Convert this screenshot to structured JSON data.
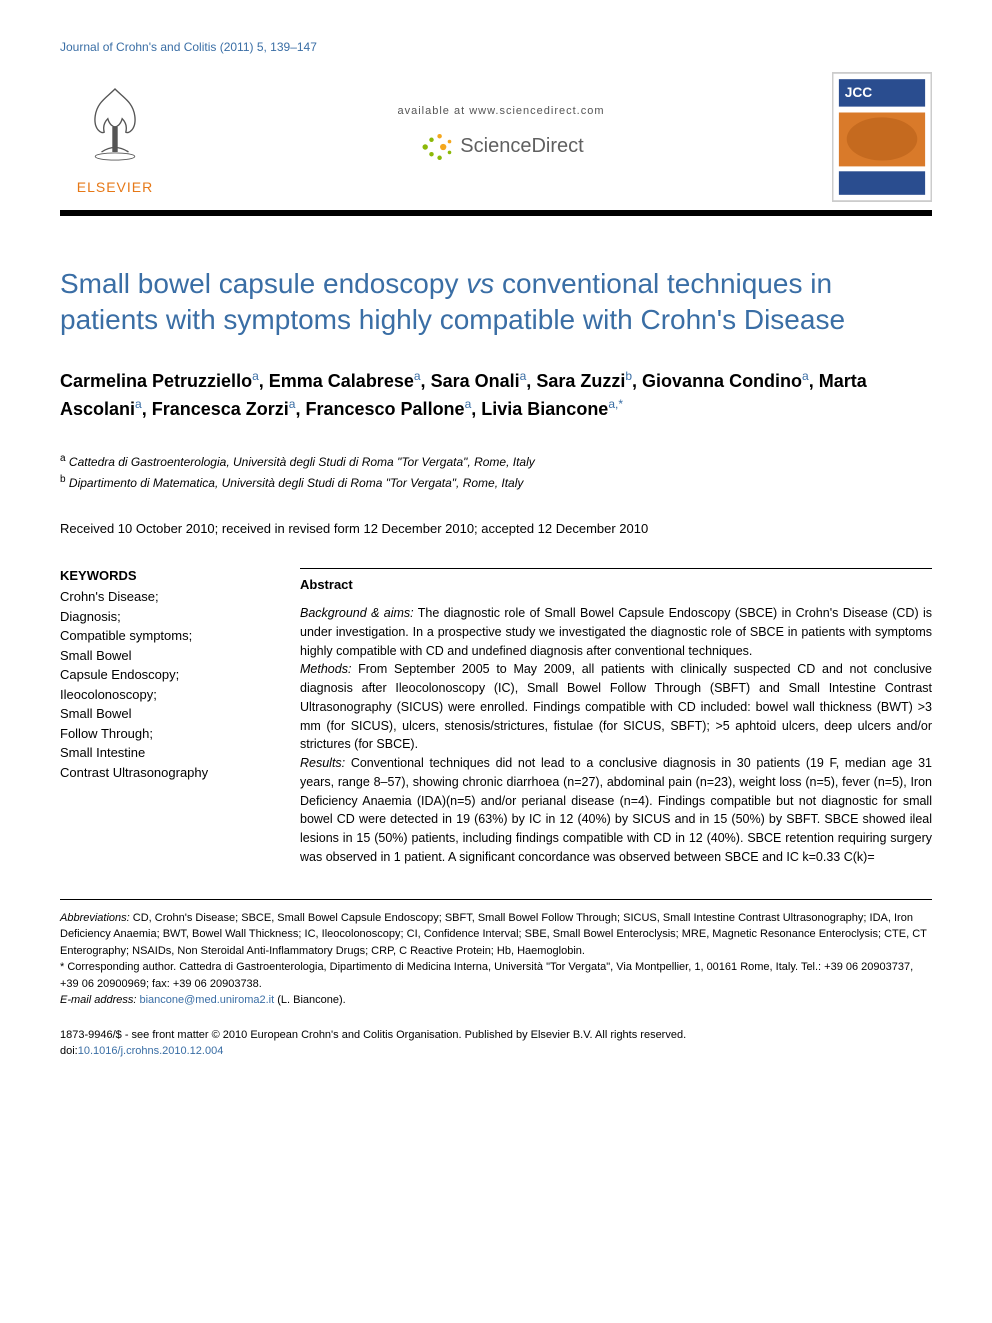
{
  "journal_ref": "Journal of Crohn's and Colitis (2011) 5, 139–147",
  "header": {
    "elsevier_label": "ELSEVIER",
    "available_text": "available at www.sciencedirect.com",
    "sciencedirect_label": "ScienceDirect",
    "cover_label_top": "JCC"
  },
  "title_parts": {
    "pre": "Small bowel capsule endoscopy ",
    "vs": "vs",
    "post": " conventional techniques in patients with symptoms highly compatible with Crohn's Disease"
  },
  "authors": [
    {
      "name": "Carmelina Petruzziello",
      "aff": "a"
    },
    {
      "name": "Emma Calabrese",
      "aff": "a"
    },
    {
      "name": "Sara Onali",
      "aff": "a"
    },
    {
      "name": "Sara Zuzzi",
      "aff": "b"
    },
    {
      "name": "Giovanna Condino",
      "aff": "a"
    },
    {
      "name": "Marta Ascolani",
      "aff": "a"
    },
    {
      "name": "Francesca Zorzi",
      "aff": "a"
    },
    {
      "name": "Francesco Pallone",
      "aff": "a"
    },
    {
      "name": "Livia Biancone",
      "aff": "a,*"
    }
  ],
  "affiliations": [
    {
      "sup": "a",
      "text": " Cattedra di Gastroenterologia, Università degli Studi di Roma \"Tor Vergata\", Rome, Italy"
    },
    {
      "sup": "b",
      "text": " Dipartimento di Matematica, Università degli Studi di Roma \"Tor Vergata\", Rome, Italy"
    }
  ],
  "dates": "Received 10 October 2010; received in revised form 12 December 2010; accepted 12 December 2010",
  "keywords": {
    "heading": "KEYWORDS",
    "items": "Crohn's Disease;\nDiagnosis;\nCompatible symptoms;\nSmall Bowel\nCapsule Endoscopy;\nIleocolonoscopy;\nSmall Bowel\nFollow Through;\nSmall Intestine\nContrast Ultrasonography"
  },
  "abstract": {
    "heading": "Abstract",
    "bg_label": "Background & aims:",
    "bg_text": " The diagnostic role of Small Bowel Capsule Endoscopy (SBCE) in Crohn's Disease (CD) is under investigation. In a prospective study we investigated the diagnostic role of SBCE in patients with symptoms highly compatible with CD and undefined diagnosis after conventional techniques.",
    "methods_label": "Methods:",
    "methods_text": " From September 2005 to May 2009, all patients with clinically suspected CD and not conclusive diagnosis after Ileocolonoscopy (IC), Small Bowel Follow Through (SBFT) and Small Intestine Contrast Ultrasonography (SICUS) were enrolled. Findings compatible with CD included: bowel wall thickness (BWT) >3 mm (for SICUS), ulcers, stenosis/strictures, fistulae (for SICUS, SBFT); >5 aphtoid ulcers, deep ulcers and/or strictures (for SBCE).",
    "results_label": "Results:",
    "results_text": " Conventional techniques did not lead to a conclusive diagnosis in 30 patients (19 F, median age 31 years, range 8–57), showing chronic diarrhoea (n=27), abdominal pain (n=23), weight loss (n=5), fever (n=5), Iron Deficiency Anaemia (IDA)(n=5) and/or perianal disease (n=4). Findings compatible but not diagnostic for small bowel CD were detected in 19 (63%) by IC in 12 (40%) by SICUS and in 15 (50%) by SBFT. SBCE showed ileal lesions in 15 (50%) patients, including findings compatible with CD in 12 (40%). SBCE retention requiring surgery was observed in 1 patient. A significant concordance was observed between SBCE and IC k=0.33 C(k)="
  },
  "footer": {
    "abbrev_label": "Abbreviations:",
    "abbrev_text": " CD, Crohn's Disease; SBCE, Small Bowel Capsule Endoscopy; SBFT, Small Bowel Follow Through; SICUS, Small Intestine Contrast Ultrasonography; IDA, Iron Deficiency Anaemia; BWT, Bowel Wall Thickness; IC, Ileocolonoscopy; CI, Confidence Interval; SBE, Small Bowel Enteroclysis; MRE, Magnetic Resonance Enteroclysis; CTE, CT Enterography; NSAIDs, Non Steroidal Anti-Inflammatory Drugs; CRP, C Reactive Protein; Hb, Haemoglobin.",
    "corr_label": "* Corresponding author. ",
    "corr_text": "Cattedra di Gastroenterologia, Dipartimento di Medicina Interna, Università \"Tor Vergata\", Via Montpellier, 1, 00161 Rome, Italy. Tel.: +39 06 20903737, +39 06 20900969; fax: +39 06 20903738.",
    "email_label": "E-mail address:",
    "email": "biancone@med.uniroma2.it",
    "email_suffix": " (L. Biancone).",
    "issn_line": "1873-9946/$ - see front matter © 2010 European Crohn's and Colitis Organisation. Published by Elsevier B.V. All rights reserved.",
    "doi_label": "doi:",
    "doi": "10.1016/j.crohns.2010.12.004"
  },
  "colors": {
    "link": "#3a6ea5",
    "elsevier_orange": "#e67817",
    "sd_green": "#8cb808",
    "sd_orange": "#f4a71d",
    "cover_blue": "#2a4d8f",
    "cover_orange": "#d97a2a"
  }
}
